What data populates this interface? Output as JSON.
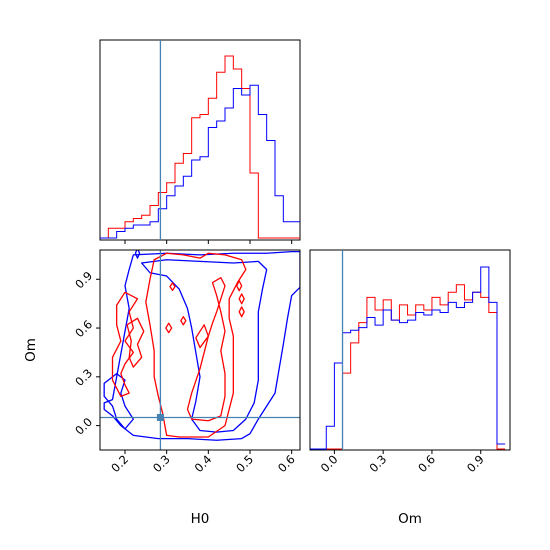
{
  "chart_data": {
    "type": "corner",
    "parameters": [
      "H0",
      "Om"
    ],
    "truth": {
      "H0": 0.285,
      "Om": 0.05
    },
    "colors": {
      "series_a": "#ff0000",
      "series_b": "#0000ff",
      "truth": "#4682b4"
    },
    "x_axis": {
      "label": "H0",
      "range": [
        0.14,
        0.62
      ],
      "tick_values": [
        0.2,
        0.3,
        0.4,
        0.5,
        0.6
      ],
      "tick_labels": [
        "0.2",
        "0.3",
        "0.4",
        "0.5",
        "0.6"
      ]
    },
    "y_axis": {
      "label": "Om",
      "range": [
        -0.15,
        1.08
      ],
      "tick_values": [
        0.0,
        0.3,
        0.6,
        0.9
      ],
      "tick_labels": [
        "0.0",
        "0.3",
        "0.6",
        "0.9"
      ]
    },
    "om_axis": {
      "label": "Om",
      "range": [
        -0.15,
        1.08
      ],
      "tick_values": [
        0.0,
        0.3,
        0.6,
        0.9
      ],
      "tick_labels": [
        "0.0",
        "0.3",
        "0.6",
        "0.9"
      ]
    },
    "h0_histogram": {
      "bin_edges": [
        0.14,
        0.16,
        0.18,
        0.2,
        0.22,
        0.24,
        0.26,
        0.28,
        0.3,
        0.32,
        0.34,
        0.36,
        0.38,
        0.4,
        0.42,
        0.44,
        0.46,
        0.48,
        0.5,
        0.52,
        0.54,
        0.56,
        0.58,
        0.6,
        0.62
      ],
      "series": [
        {
          "counts": [
            0,
            3,
            3,
            5,
            6,
            7,
            10,
            14,
            17,
            23,
            26,
            37,
            38,
            43,
            51,
            56,
            52,
            46,
            20,
            0,
            0,
            0,
            0,
            0
          ]
        },
        {
          "counts": [
            0,
            0,
            2,
            3,
            4,
            4,
            5,
            9,
            13,
            16,
            19,
            24,
            25,
            34,
            36,
            40,
            46,
            44,
            47,
            38,
            30,
            13,
            5,
            5
          ]
        }
      ]
    },
    "om_histogram": {
      "bin_edges": [
        -0.15,
        -0.1,
        -0.05,
        0.0,
        0.05,
        0.1,
        0.15,
        0.2,
        0.25,
        0.3,
        0.35,
        0.4,
        0.45,
        0.5,
        0.55,
        0.6,
        0.65,
        0.7,
        0.75,
        0.8,
        0.85,
        0.9,
        0.95,
        1.0,
        1.05
      ],
      "series": [
        {
          "counts": [
            0,
            0,
            0,
            0,
            30,
            42,
            50,
            60,
            55,
            59,
            51,
            57,
            53,
            57,
            55,
            60,
            57,
            62,
            65,
            59,
            62,
            60,
            54,
            0
          ]
        },
        {
          "counts": [
            0,
            0,
            9,
            34,
            46,
            47,
            48,
            52,
            49,
            55,
            51,
            50,
            51,
            54,
            53,
            55,
            54,
            58,
            56,
            58,
            62,
            72,
            58,
            2
          ]
        }
      ]
    },
    "contours": {
      "series_a": [
        [
          [
            0.27,
            1.02
          ],
          [
            0.3,
            1.06
          ],
          [
            0.34,
            1.05
          ],
          [
            0.38,
            1.03
          ],
          [
            0.4,
            1.06
          ],
          [
            0.44,
            1.05
          ],
          [
            0.48,
            1.02
          ],
          [
            0.49,
            0.96
          ],
          [
            0.47,
            0.88
          ],
          [
            0.45,
            0.78
          ],
          [
            0.45,
            0.66
          ],
          [
            0.46,
            0.55
          ],
          [
            0.46,
            0.42
          ],
          [
            0.46,
            0.2
          ],
          [
            0.44,
            0.0
          ],
          [
            0.4,
            -0.07
          ],
          [
            0.33,
            -0.07
          ],
          [
            0.3,
            -0.06
          ],
          [
            0.29,
            0.08
          ],
          [
            0.28,
            0.18
          ],
          [
            0.27,
            0.3
          ],
          [
            0.27,
            0.46
          ],
          [
            0.26,
            0.62
          ],
          [
            0.25,
            0.76
          ],
          [
            0.26,
            0.9
          ],
          [
            0.27,
            1.02
          ]
        ],
        [
          [
            0.41,
            0.88
          ],
          [
            0.43,
            0.91
          ],
          [
            0.44,
            0.86
          ],
          [
            0.43,
            0.78
          ],
          [
            0.42,
            0.7
          ],
          [
            0.41,
            0.63
          ],
          [
            0.4,
            0.55
          ],
          [
            0.39,
            0.45
          ],
          [
            0.38,
            0.35
          ],
          [
            0.36,
            0.2
          ],
          [
            0.35,
            0.1
          ],
          [
            0.36,
            0.04
          ],
          [
            0.4,
            0.03
          ],
          [
            0.43,
            0.06
          ],
          [
            0.44,
            0.18
          ],
          [
            0.44,
            0.32
          ],
          [
            0.43,
            0.46
          ],
          [
            0.44,
            0.58
          ],
          [
            0.43,
            0.7
          ],
          [
            0.42,
            0.8
          ],
          [
            0.41,
            0.88
          ]
        ],
        [
          [
            0.18,
            0.74
          ],
          [
            0.2,
            0.82
          ],
          [
            0.23,
            0.78
          ],
          [
            0.21,
            0.7
          ],
          [
            0.22,
            0.6
          ],
          [
            0.2,
            0.52
          ],
          [
            0.22,
            0.45
          ],
          [
            0.2,
            0.38
          ],
          [
            0.19,
            0.32
          ],
          [
            0.2,
            0.25
          ],
          [
            0.21,
            0.2
          ],
          [
            0.19,
            0.18
          ],
          [
            0.17,
            0.28
          ],
          [
            0.17,
            0.42
          ],
          [
            0.19,
            0.52
          ],
          [
            0.18,
            0.62
          ],
          [
            0.18,
            0.74
          ]
        ],
        [
          [
            0.205,
            0.62
          ],
          [
            0.23,
            0.66
          ],
          [
            0.245,
            0.58
          ],
          [
            0.23,
            0.5
          ],
          [
            0.24,
            0.42
          ],
          [
            0.22,
            0.36
          ],
          [
            0.21,
            0.42
          ],
          [
            0.215,
            0.52
          ],
          [
            0.205,
            0.62
          ]
        ],
        [
          [
            0.37,
            0.54
          ],
          [
            0.39,
            0.62
          ],
          [
            0.4,
            0.55
          ],
          [
            0.38,
            0.48
          ],
          [
            0.37,
            0.54
          ]
        ],
        [
          [
            0.308,
            0.855
          ],
          [
            0.314,
            0.878
          ],
          [
            0.32,
            0.855
          ],
          [
            0.314,
            0.832
          ],
          [
            0.308,
            0.855
          ]
        ],
        [
          [
            0.298,
            0.6
          ],
          [
            0.305,
            0.63
          ],
          [
            0.312,
            0.6
          ],
          [
            0.305,
            0.572
          ],
          [
            0.298,
            0.6
          ]
        ],
        [
          [
            0.334,
            0.645
          ],
          [
            0.34,
            0.67
          ],
          [
            0.346,
            0.645
          ],
          [
            0.34,
            0.62
          ],
          [
            0.334,
            0.645
          ]
        ],
        [
          [
            0.474,
            0.7
          ],
          [
            0.48,
            0.73
          ],
          [
            0.486,
            0.7
          ],
          [
            0.48,
            0.67
          ],
          [
            0.474,
            0.7
          ]
        ],
        [
          [
            0.474,
            0.78
          ],
          [
            0.48,
            0.81
          ],
          [
            0.486,
            0.78
          ],
          [
            0.48,
            0.75
          ],
          [
            0.474,
            0.78
          ]
        ],
        [
          [
            0.468,
            0.86
          ],
          [
            0.474,
            0.89
          ],
          [
            0.48,
            0.86
          ],
          [
            0.474,
            0.83
          ],
          [
            0.468,
            0.86
          ]
        ]
      ],
      "series_b": [
        [
          [
            0.22,
            1.05
          ],
          [
            0.3,
            1.06
          ],
          [
            0.38,
            1.05
          ],
          [
            0.46,
            1.06
          ],
          [
            0.54,
            1.06
          ],
          [
            0.6,
            1.07
          ],
          [
            0.62,
            1.07
          ],
          [
            0.62,
            0.85
          ],
          [
            0.6,
            0.8
          ],
          [
            0.59,
            0.66
          ],
          [
            0.58,
            0.5
          ],
          [
            0.57,
            0.35
          ],
          [
            0.56,
            0.2
          ],
          [
            0.54,
            0.12
          ],
          [
            0.52,
            0.04
          ],
          [
            0.5,
            -0.05
          ],
          [
            0.48,
            -0.08
          ],
          [
            0.42,
            -0.09
          ],
          [
            0.35,
            -0.08
          ],
          [
            0.28,
            -0.08
          ],
          [
            0.22,
            -0.06
          ],
          [
            0.19,
            0.0
          ],
          [
            0.17,
            0.06
          ],
          [
            0.15,
            0.1
          ],
          [
            0.15,
            0.14
          ],
          [
            0.17,
            0.16
          ],
          [
            0.18,
            0.3
          ],
          [
            0.19,
            0.44
          ],
          [
            0.2,
            0.58
          ],
          [
            0.21,
            0.72
          ],
          [
            0.2,
            0.86
          ],
          [
            0.21,
            0.96
          ],
          [
            0.22,
            1.05
          ]
        ],
        [
          [
            0.24,
            1.0
          ],
          [
            0.3,
            1.02
          ],
          [
            0.38,
            1.01
          ],
          [
            0.46,
            1.0
          ],
          [
            0.52,
            1.01
          ],
          [
            0.54,
            0.96
          ],
          [
            0.53,
            0.84
          ],
          [
            0.52,
            0.7
          ],
          [
            0.52,
            0.56
          ],
          [
            0.52,
            0.42
          ],
          [
            0.52,
            0.28
          ],
          [
            0.51,
            0.14
          ],
          [
            0.49,
            0.04
          ],
          [
            0.46,
            -0.03
          ],
          [
            0.42,
            -0.04
          ],
          [
            0.38,
            -0.03
          ],
          [
            0.36,
            0.04
          ],
          [
            0.37,
            0.15
          ],
          [
            0.38,
            0.3
          ],
          [
            0.37,
            0.45
          ],
          [
            0.36,
            0.6
          ],
          [
            0.35,
            0.72
          ],
          [
            0.33,
            0.84
          ],
          [
            0.3,
            0.92
          ],
          [
            0.26,
            0.94
          ],
          [
            0.24,
            1.0
          ]
        ],
        [
          [
            0.15,
            0.26
          ],
          [
            0.18,
            0.32
          ],
          [
            0.2,
            0.28
          ],
          [
            0.19,
            0.2
          ],
          [
            0.2,
            0.12
          ],
          [
            0.22,
            0.04
          ],
          [
            0.2,
            -0.02
          ],
          [
            0.18,
            0.04
          ],
          [
            0.17,
            0.12
          ],
          [
            0.15,
            0.18
          ],
          [
            0.15,
            0.26
          ]
        ],
        [
          [
            0.225,
            1.06
          ],
          [
            0.23,
            1.09
          ],
          [
            0.235,
            1.06
          ],
          [
            0.23,
            1.03
          ],
          [
            0.225,
            1.06
          ]
        ]
      ]
    }
  }
}
